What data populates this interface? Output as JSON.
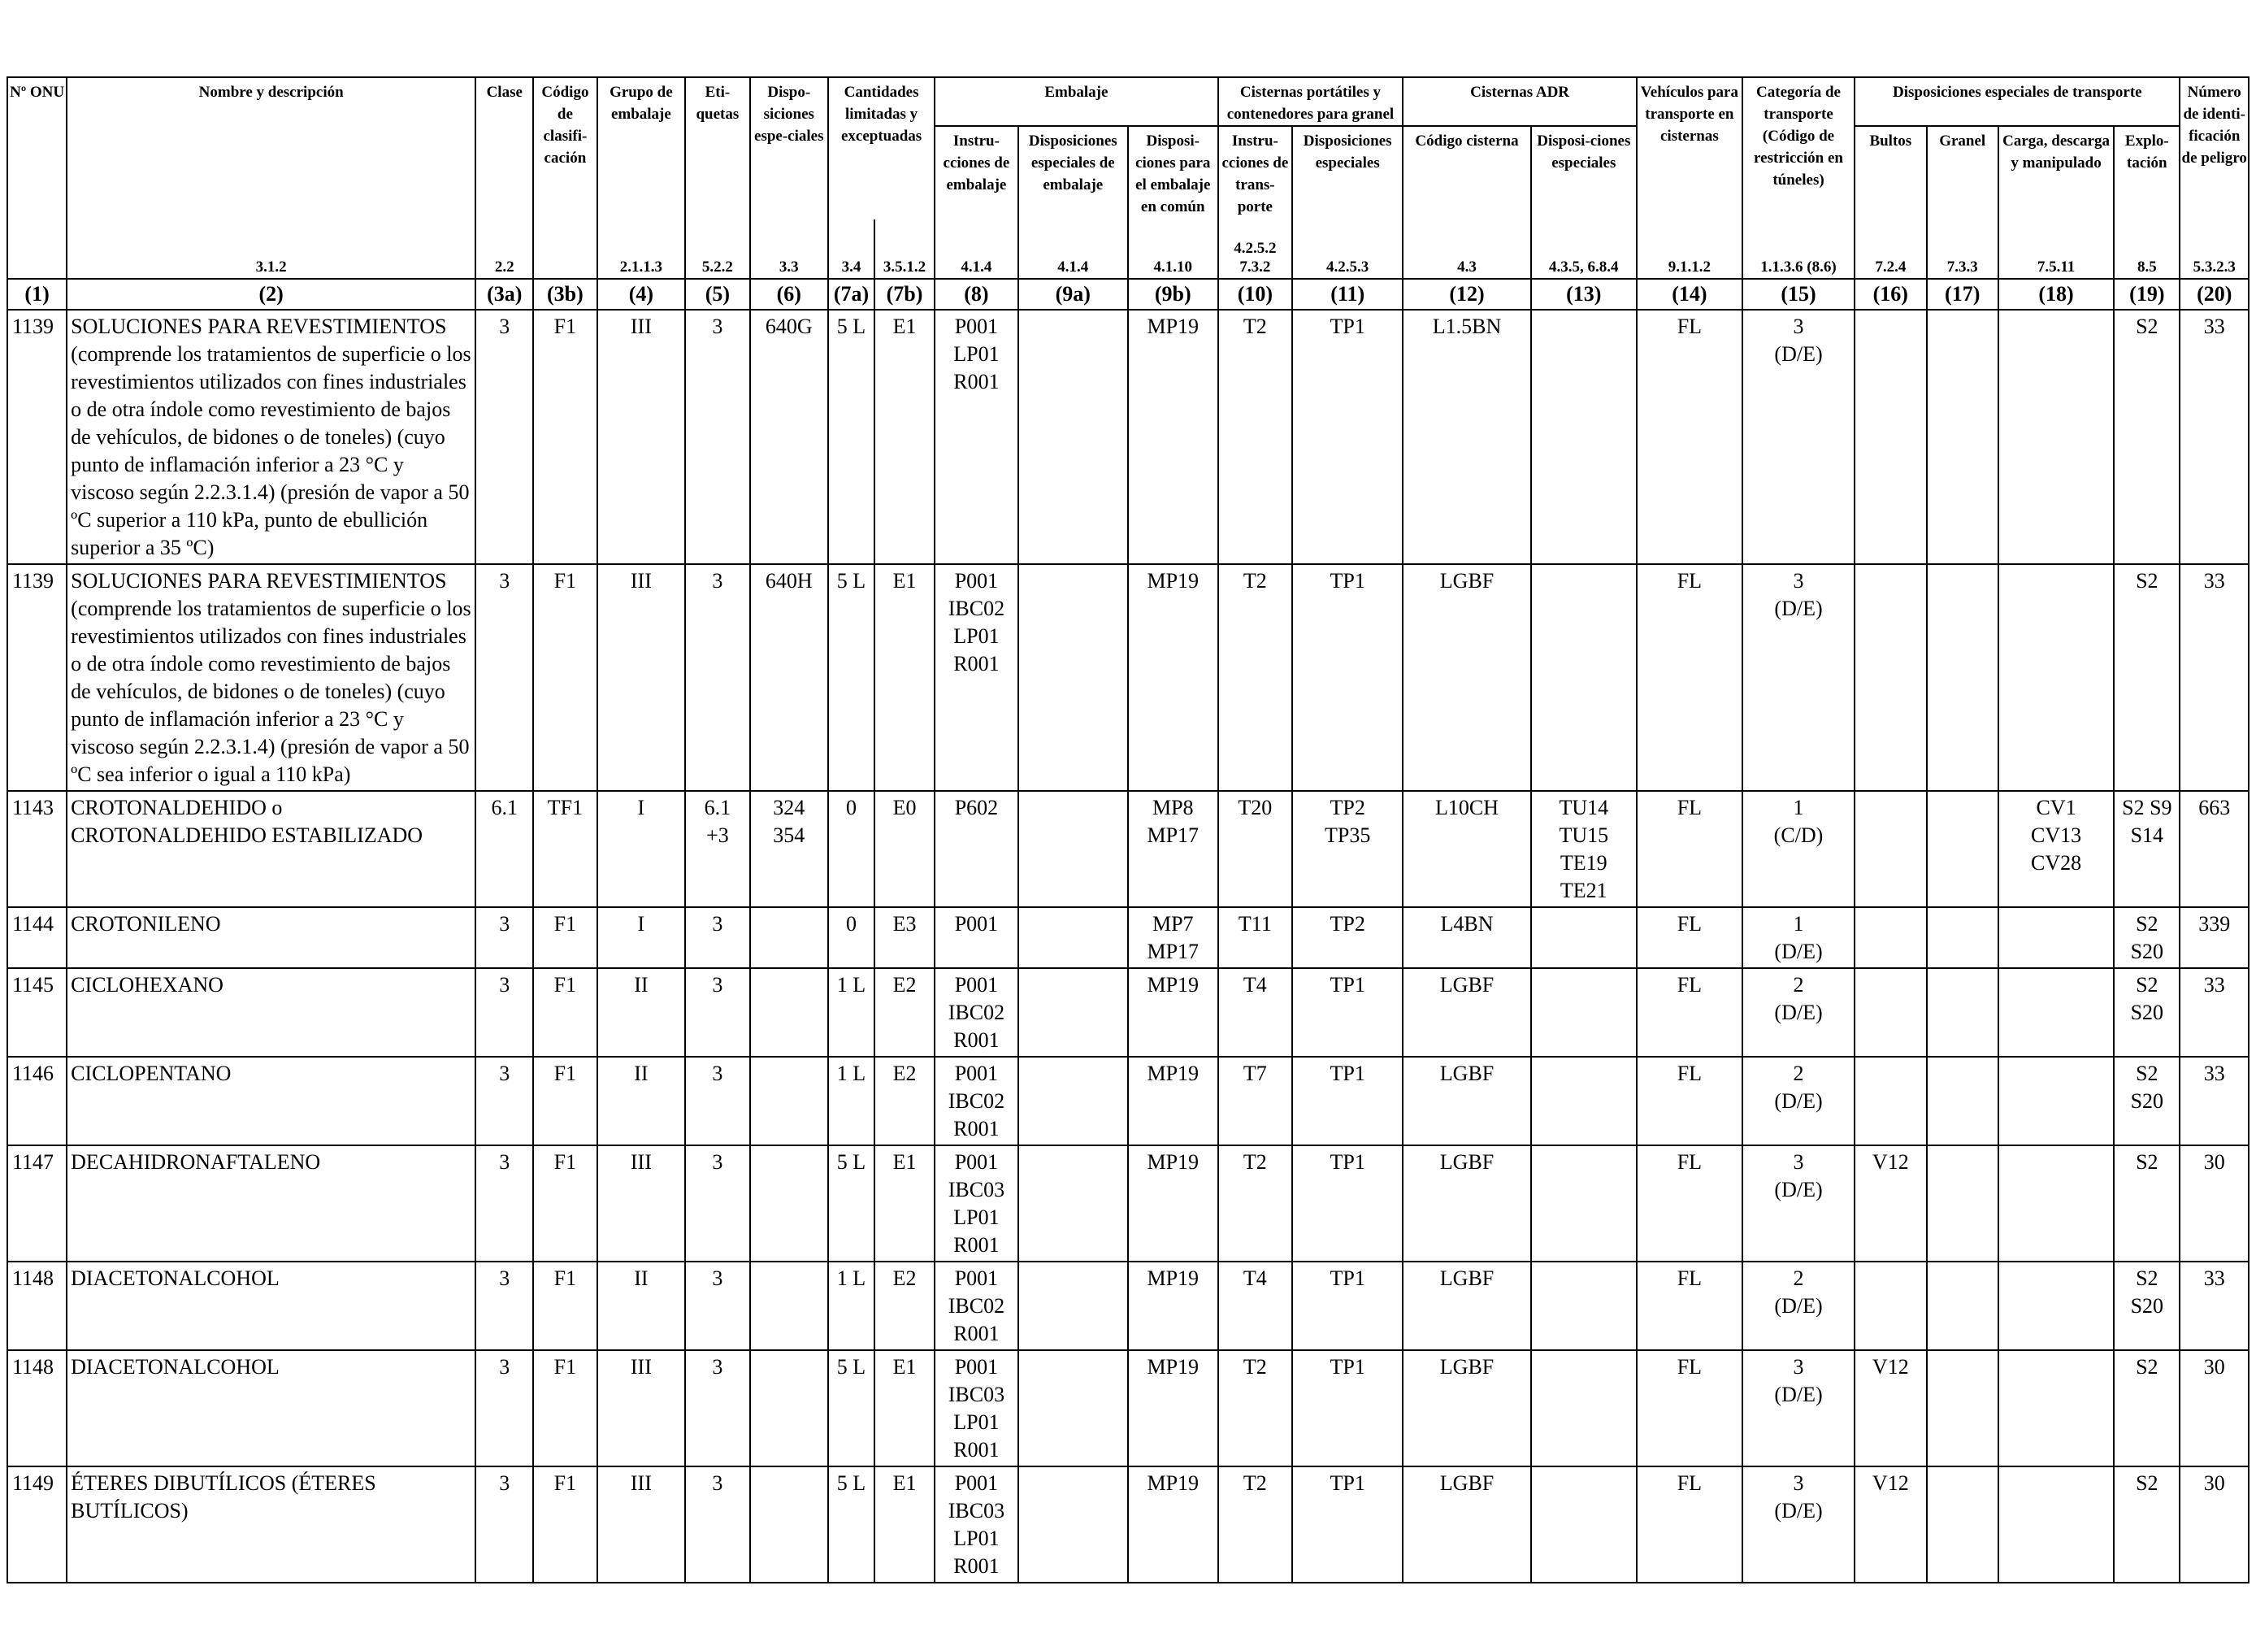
{
  "header": {
    "groups": {
      "limited": "Cantidades limitadas y exceptuadas",
      "packaging": "Embalaje",
      "portable_tanks": "Cisternas portátiles y contenedores para granel",
      "adr_tanks": "Cisternas ADR",
      "special_transport": "Disposiciones especiales de transporte"
    },
    "columns": [
      {
        "label": "Nº ONU",
        "ref": "",
        "num": "(1)"
      },
      {
        "label": "Nombre y descripción",
        "ref": "3.1.2",
        "num": "(2)"
      },
      {
        "label": "Clase",
        "ref": "2.2",
        "num": "(3a)"
      },
      {
        "label": "Código de clasifi-cación",
        "ref": "",
        "num": "(3b)"
      },
      {
        "label": "Grupo de embalaje",
        "ref": "2.1.1.3",
        "num": "(4)"
      },
      {
        "label": "Eti-quetas",
        "ref": "5.2.2",
        "num": "(5)"
      },
      {
        "label": "Dispo-siciones espe-ciales",
        "ref": "3.3",
        "num": "(6)"
      },
      {
        "label": "",
        "ref": "3.4",
        "num": "(7a)"
      },
      {
        "label": "",
        "ref": "3.5.1.2",
        "num": "(7b)"
      },
      {
        "label": "Instru-cciones de embalaje",
        "ref": "4.1.4",
        "num": "(8)"
      },
      {
        "label": "Disposiciones especiales de embalaje",
        "ref": "4.1.4",
        "num": "(9a)"
      },
      {
        "label": "Disposi-ciones para el embalaje en común",
        "ref": "4.1.10",
        "num": "(9b)"
      },
      {
        "label": "Instru-cciones de trans-porte",
        "ref": "4.2.5.2 7.3.2",
        "num": "(10)"
      },
      {
        "label": "Disposiciones especiales",
        "ref": "4.2.5.3",
        "num": "(11)"
      },
      {
        "label": "Código cisterna",
        "ref": "4.3",
        "num": "(12)"
      },
      {
        "label": "Disposi-ciones especiales",
        "ref": "4.3.5, 6.8.4",
        "num": "(13)"
      },
      {
        "label": "Vehículos para transporte en cisternas",
        "ref": "9.1.1.2",
        "num": "(14)"
      },
      {
        "label": "Categoría de transporte (Código de restricción en túneles)",
        "ref": "1.1.3.6 (8.6)",
        "num": "(15)"
      },
      {
        "label": "Bultos",
        "ref": "7.2.4",
        "num": "(16)"
      },
      {
        "label": "Granel",
        "ref": "7.3.3",
        "num": "(17)"
      },
      {
        "label": "Carga, descarga y manipulado",
        "ref": "7.5.11",
        "num": "(18)"
      },
      {
        "label": "Explo-tación",
        "ref": "8.5",
        "num": "(19)"
      },
      {
        "label": "Número de identi-ficación de peligro",
        "ref": "5.3.2.3",
        "num": "(20)"
      }
    ]
  },
  "rows": [
    {
      "onu": "1139",
      "name": "SOLUCIONES PARA REVESTIMIENTOS (comprende los tratamientos de superficie o los revestimientos utilizados con fines industriales o de otra índole como revestimiento de bajos de vehículos, de bidones o de toneles) (cuyo punto de inflamación inferior a 23 °C y viscoso según 2.2.3.1.4) (presión de vapor a 50 ºC superior a 110 kPa, punto de ebullición superior a 35 ºC)",
      "c3a": "3",
      "c3b": "F1",
      "c4": "III",
      "c5": [
        "3"
      ],
      "c6": [
        "640G"
      ],
      "c7a": "5 L",
      "c7b": "E1",
      "c8": [
        "P001",
        "LP01",
        "R001"
      ],
      "c9a": [],
      "c9b": [
        "MP19"
      ],
      "c10": [
        "T2"
      ],
      "c11": [
        "TP1"
      ],
      "c12": "L1.5BN",
      "c13": [],
      "c14": "FL",
      "c15": [
        "3",
        "(D/E)"
      ],
      "c16": "",
      "c17": "",
      "c18": [],
      "c19": [
        "S2"
      ],
      "c20": "33"
    },
    {
      "onu": "1139",
      "name": "SOLUCIONES PARA REVESTIMIENTOS (comprende los tratamientos de superficie o los revestimientos utilizados con fines industriales o de otra índole como revestimiento de bajos de vehículos, de bidones o de toneles) (cuyo punto de inflamación inferior a 23 °C y viscoso según 2.2.3.1.4) (presión de vapor a 50 ºC sea inferior o igual a 110 kPa)",
      "c3a": "3",
      "c3b": "F1",
      "c4": "III",
      "c5": [
        "3"
      ],
      "c6": [
        "640H"
      ],
      "c7a": "5 L",
      "c7b": "E1",
      "c8": [
        "P001",
        "IBC02",
        "LP01",
        "R001"
      ],
      "c9a": [],
      "c9b": [
        "MP19"
      ],
      "c10": [
        "T2"
      ],
      "c11": [
        "TP1"
      ],
      "c12": "LGBF",
      "c13": [],
      "c14": "FL",
      "c15": [
        "3",
        "(D/E)"
      ],
      "c16": "",
      "c17": "",
      "c18": [],
      "c19": [
        "S2"
      ],
      "c20": "33"
    },
    {
      "onu": "1143",
      "name": "CROTONALDEHIDO o CROTONALDEHIDO ESTABILIZADO",
      "c3a": "6.1",
      "c3b": "TF1",
      "c4": "I",
      "c5": [
        "6.1",
        "+3"
      ],
      "c6": [
        "324",
        "354"
      ],
      "c7a": "0",
      "c7b": "E0",
      "c8": [
        "P602"
      ],
      "c9a": [],
      "c9b": [
        "MP8",
        "MP17"
      ],
      "c10": [
        "T20"
      ],
      "c11": [
        "TP2",
        "TP35"
      ],
      "c12": "L10CH",
      "c13": [
        "TU14",
        "TU15",
        "TE19",
        "TE21"
      ],
      "c14": "FL",
      "c15": [
        "1",
        "(C/D)"
      ],
      "c16": "",
      "c17": "",
      "c18": [
        "CV1",
        "CV13",
        "CV28"
      ],
      "c19": [
        "S2 S9",
        "S14"
      ],
      "c20": "663"
    },
    {
      "onu": "1144",
      "name": "CROTONILENO",
      "c3a": "3",
      "c3b": "F1",
      "c4": "I",
      "c5": [
        "3"
      ],
      "c6": [],
      "c7a": "0",
      "c7b": "E3",
      "c8": [
        "P001"
      ],
      "c9a": [],
      "c9b": [
        "MP7",
        "MP17"
      ],
      "c10": [
        "T11"
      ],
      "c11": [
        "TP2"
      ],
      "c12": "L4BN",
      "c13": [],
      "c14": "FL",
      "c15": [
        "1",
        "(D/E)"
      ],
      "c16": "",
      "c17": "",
      "c18": [],
      "c19": [
        "S2",
        "S20"
      ],
      "c20": "339"
    },
    {
      "onu": "1145",
      "name": "CICLOHEXANO",
      "c3a": "3",
      "c3b": "F1",
      "c4": "II",
      "c5": [
        "3"
      ],
      "c6": [],
      "c7a": "1 L",
      "c7b": "E2",
      "c8": [
        "P001",
        "IBC02",
        "R001"
      ],
      "c9a": [],
      "c9b": [
        "MP19"
      ],
      "c10": [
        "T4"
      ],
      "c11": [
        "TP1"
      ],
      "c12": "LGBF",
      "c13": [],
      "c14": "FL",
      "c15": [
        "2",
        "(D/E)"
      ],
      "c16": "",
      "c17": "",
      "c18": [],
      "c19": [
        "S2",
        "S20"
      ],
      "c20": "33"
    },
    {
      "onu": "1146",
      "name": "CICLOPENTANO",
      "c3a": "3",
      "c3b": "F1",
      "c4": "II",
      "c5": [
        "3"
      ],
      "c6": [],
      "c7a": "1 L",
      "c7b": "E2",
      "c8": [
        "P001",
        "IBC02",
        "R001"
      ],
      "c9a": [],
      "c9b": [
        "MP19"
      ],
      "c10": [
        "T7"
      ],
      "c11": [
        "TP1"
      ],
      "c12": "LGBF",
      "c13": [],
      "c14": "FL",
      "c15": [
        "2",
        "(D/E)"
      ],
      "c16": "",
      "c17": "",
      "c18": [],
      "c19": [
        "S2",
        "S20"
      ],
      "c20": "33"
    },
    {
      "onu": "1147",
      "name": "DECAHIDRONAFTALENO",
      "c3a": "3",
      "c3b": "F1",
      "c4": "III",
      "c5": [
        "3"
      ],
      "c6": [],
      "c7a": "5 L",
      "c7b": "E1",
      "c8": [
        "P001",
        "IBC03",
        "LP01",
        "R001"
      ],
      "c9a": [],
      "c9b": [
        "MP19"
      ],
      "c10": [
        "T2"
      ],
      "c11": [
        "TP1"
      ],
      "c12": "LGBF",
      "c13": [],
      "c14": "FL",
      "c15": [
        "3",
        "(D/E)"
      ],
      "c16": "V12",
      "c17": "",
      "c18": [],
      "c19": [
        "S2"
      ],
      "c20": "30"
    },
    {
      "onu": "1148",
      "name": "DIACETONALCOHOL",
      "c3a": "3",
      "c3b": "F1",
      "c4": "II",
      "c5": [
        "3"
      ],
      "c6": [],
      "c7a": "1 L",
      "c7b": "E2",
      "c8": [
        "P001",
        "IBC02",
        "R001"
      ],
      "c9a": [],
      "c9b": [
        "MP19"
      ],
      "c10": [
        "T4"
      ],
      "c11": [
        "TP1"
      ],
      "c12": "LGBF",
      "c13": [],
      "c14": "FL",
      "c15": [
        "2",
        "(D/E)"
      ],
      "c16": "",
      "c17": "",
      "c18": [],
      "c19": [
        "S2",
        "S20"
      ],
      "c20": "33"
    },
    {
      "onu": "1148",
      "name": "DIACETONALCOHOL",
      "c3a": "3",
      "c3b": "F1",
      "c4": "III",
      "c5": [
        "3"
      ],
      "c6": [],
      "c7a": "5 L",
      "c7b": "E1",
      "c8": [
        "P001",
        "IBC03",
        "LP01",
        "R001"
      ],
      "c9a": [],
      "c9b": [
        "MP19"
      ],
      "c10": [
        "T2"
      ],
      "c11": [
        "TP1"
      ],
      "c12": "LGBF",
      "c13": [],
      "c14": "FL",
      "c15": [
        "3",
        "(D/E)"
      ],
      "c16": "V12",
      "c17": "",
      "c18": [],
      "c19": [
        "S2"
      ],
      "c20": "30"
    },
    {
      "onu": "1149",
      "name": "ÉTERES DIBUTÍLICOS (ÉTERES BUTÍLICOS)",
      "c3a": "3",
      "c3b": "F1",
      "c4": "III",
      "c5": [
        "3"
      ],
      "c6": [],
      "c7a": "5 L",
      "c7b": "E1",
      "c8": [
        "P001",
        "IBC03",
        "LP01",
        "R001"
      ],
      "c9a": [],
      "c9b": [
        "MP19"
      ],
      "c10": [
        "T2"
      ],
      "c11": [
        "TP1"
      ],
      "c12": "LGBF",
      "c13": [],
      "c14": "FL",
      "c15": [
        "3",
        "(D/E)"
      ],
      "c16": "V12",
      "c17": "",
      "c18": [],
      "c19": [
        "S2"
      ],
      "c20": "30"
    }
  ]
}
